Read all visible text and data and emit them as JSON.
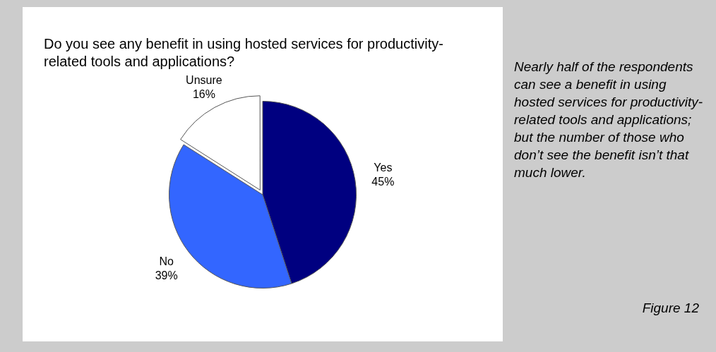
{
  "chart_data": {
    "type": "pie",
    "title": "Do you see any benefit in using hosted services for productivity-related tools and applications?",
    "categories": [
      "Yes",
      "No",
      "Unsure"
    ],
    "values": [
      45,
      39,
      16
    ],
    "value_labels": [
      "45%",
      "39%",
      "16%"
    ],
    "colors": [
      "#000080",
      "#3366ff",
      "#ffffff"
    ],
    "legend": false,
    "annotations": [
      "Nearly half of the respondents can see a benefit in using hosted services for productivity-related tools and applications; but the number of those who don’t see the benefit isn’t that much lower.",
      "Figure 12"
    ]
  }
}
